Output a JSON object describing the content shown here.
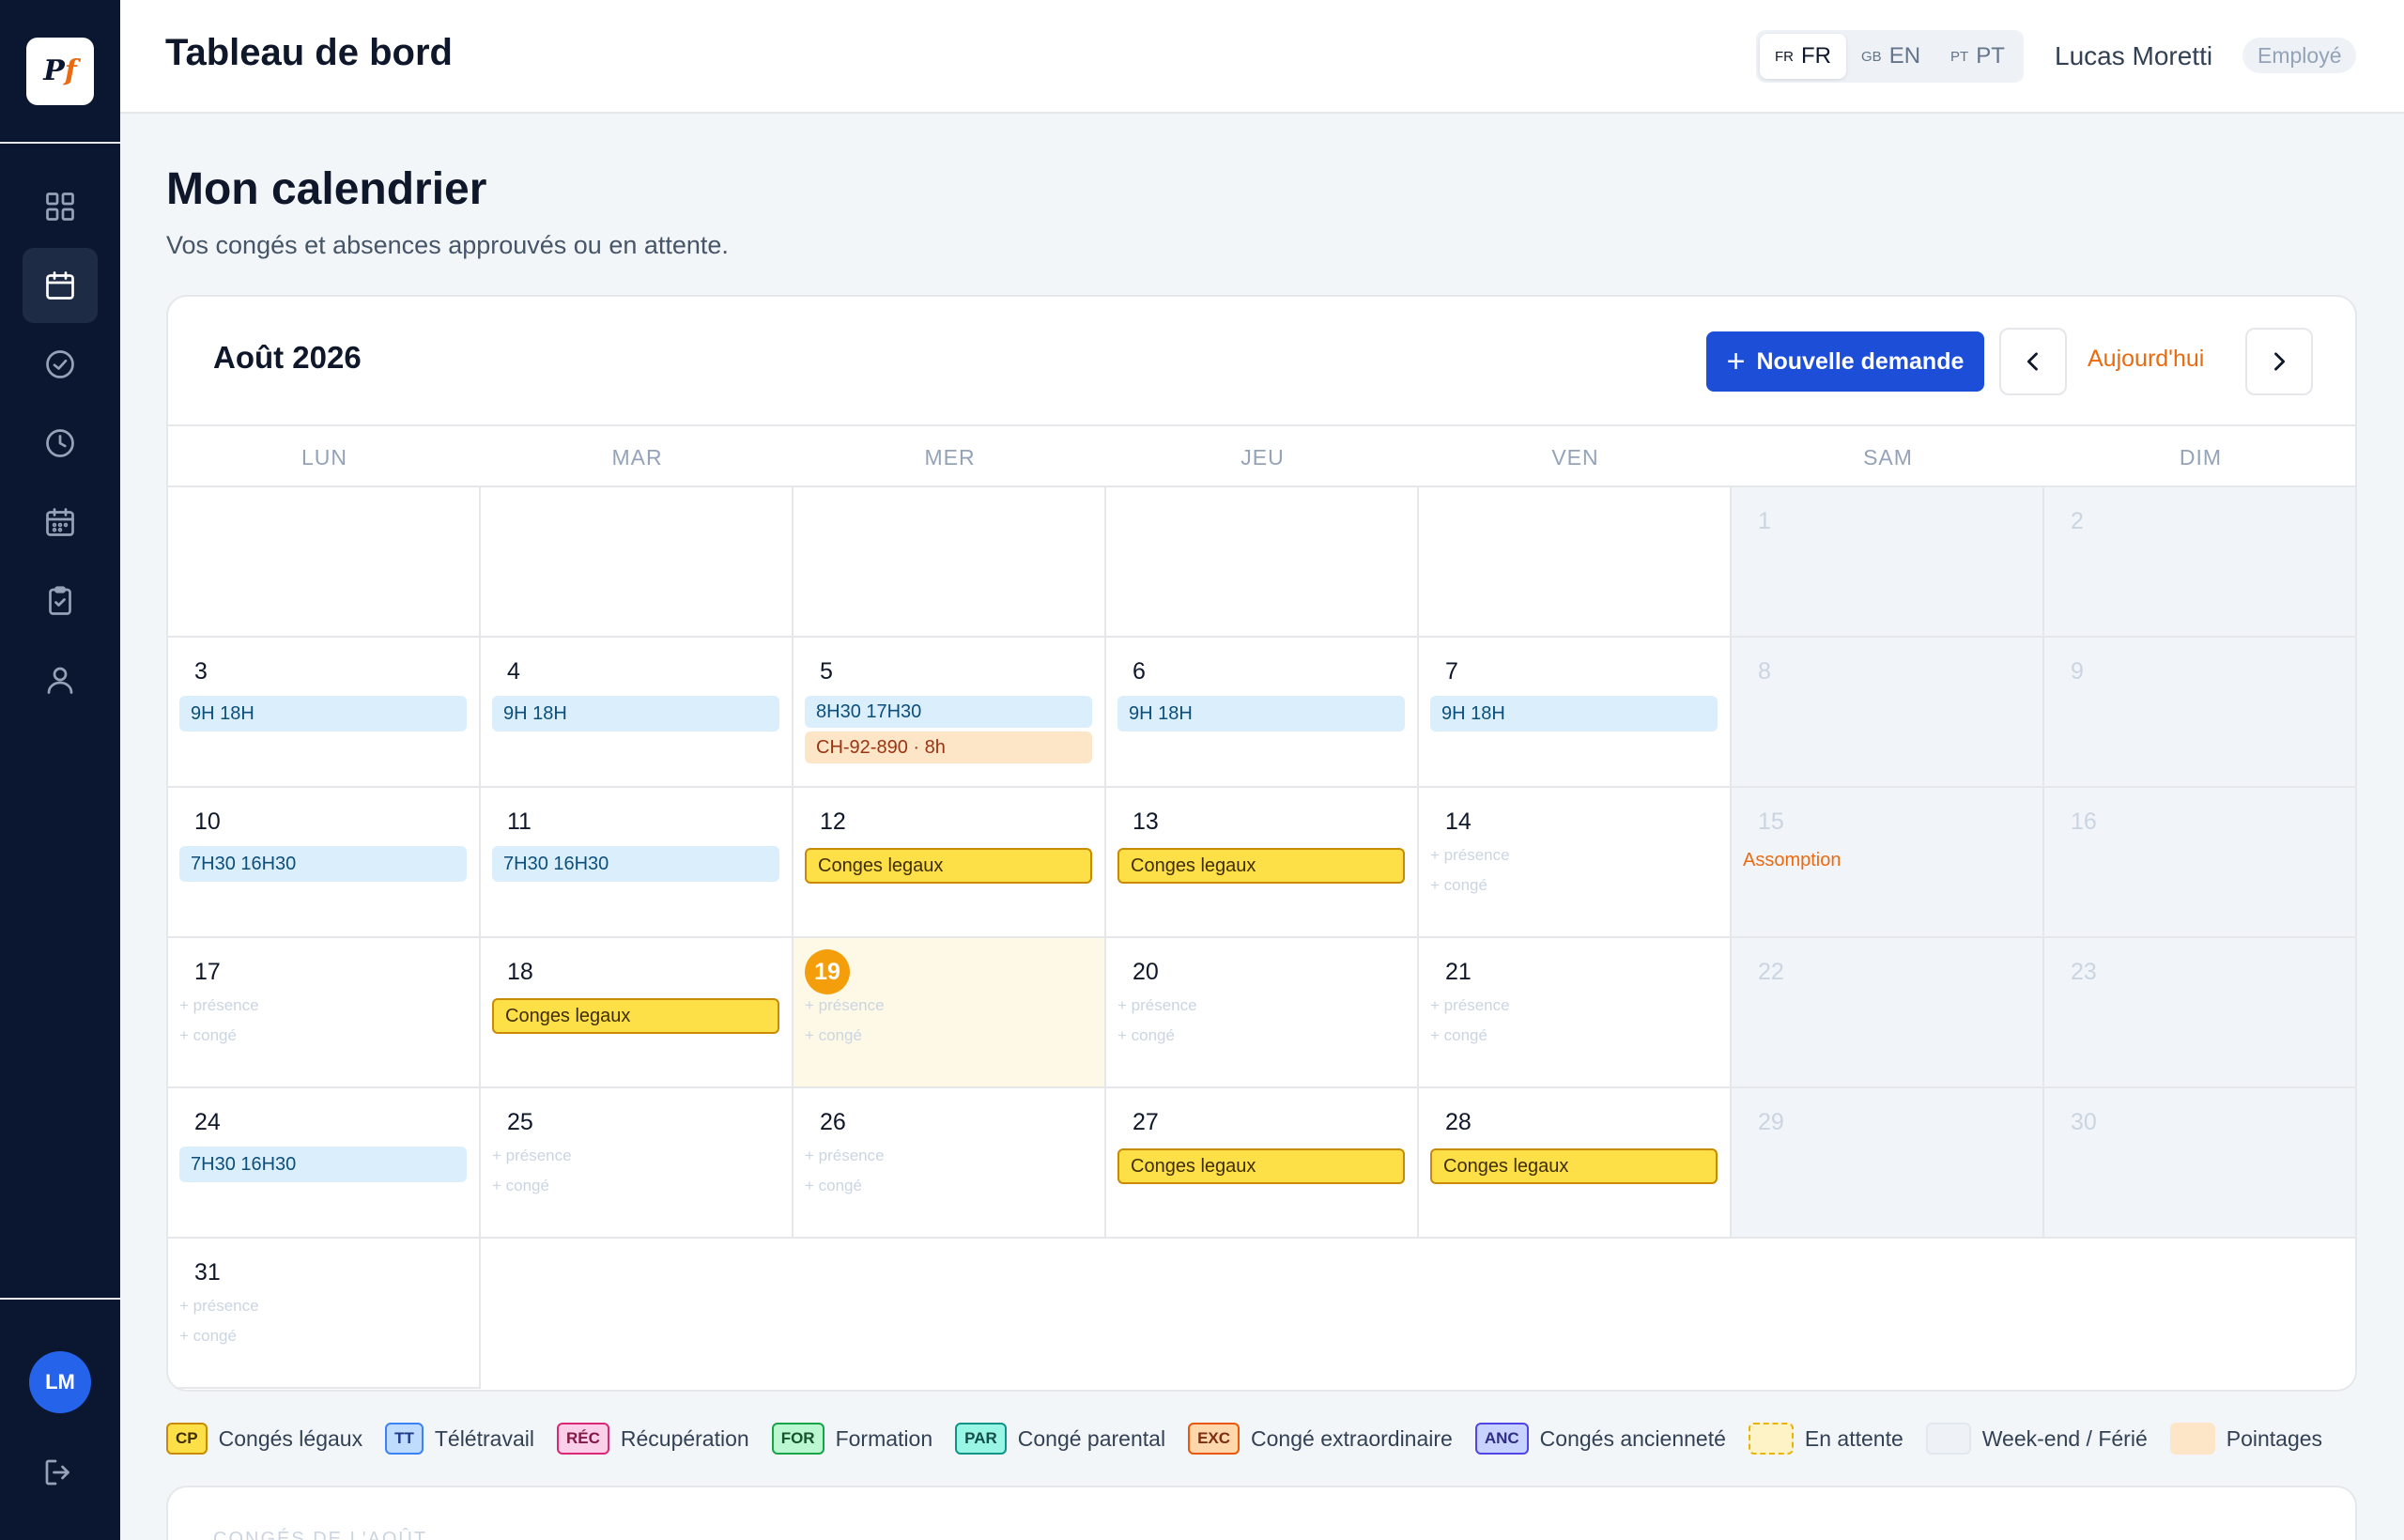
{
  "app": {
    "header_title": "Tableau de bord"
  },
  "lang": [
    {
      "code": "FR",
      "label": "FR",
      "active": true
    },
    {
      "code": "GB",
      "label": "EN",
      "active": false
    },
    {
      "code": "PT",
      "label": "PT",
      "active": false
    }
  ],
  "user": {
    "name": "Lucas Moretti",
    "role": "Employé",
    "initials": "LM"
  },
  "page": {
    "title": "Mon calendrier",
    "subtitle": "Vos congés et absences approuvés ou en attente."
  },
  "calendar": {
    "month_label": "Août 2026",
    "new_request_label": "Nouvelle demande",
    "today_label": "Aujourd'hui",
    "weekdays": [
      "LUN",
      "MAR",
      "MER",
      "JEU",
      "VEN",
      "SAM",
      "DIM"
    ],
    "add_presence": "+ présence",
    "add_leave": "+ congé",
    "today_day": 19,
    "days": [
      {
        "day": 1,
        "weekend": true
      },
      {
        "day": 2,
        "weekend": true
      },
      {
        "day": 3,
        "events": [
          {
            "type": "pointage",
            "label": "9H 18H"
          }
        ]
      },
      {
        "day": 4,
        "events": [
          {
            "type": "pointage",
            "label": "9H 18H"
          }
        ]
      },
      {
        "day": 5,
        "events": [
          {
            "type": "pointage",
            "label": "8H30 17H30"
          },
          {
            "type": "pending",
            "label": "CH-92-890 · 8h"
          }
        ]
      },
      {
        "day": 6,
        "events": [
          {
            "type": "pointage",
            "label": "9H 18H"
          }
        ]
      },
      {
        "day": 7,
        "events": [
          {
            "type": "pointage",
            "label": "9H 18H"
          }
        ]
      },
      {
        "day": 8,
        "weekend": true
      },
      {
        "day": 9,
        "weekend": true
      },
      {
        "day": 10,
        "events": [
          {
            "type": "pointage",
            "label": "7H30 16H30"
          }
        ]
      },
      {
        "day": 11,
        "events": [
          {
            "type": "pointage",
            "label": "7H30 16H30"
          }
        ]
      },
      {
        "day": 12,
        "events": [
          {
            "type": "cp",
            "label": "Conges legaux"
          }
        ]
      },
      {
        "day": 13,
        "events": [
          {
            "type": "cp",
            "label": "Conges legaux"
          }
        ]
      },
      {
        "day": 14,
        "add": true
      },
      {
        "day": 15,
        "weekend": true,
        "holiday": "Assomption"
      },
      {
        "day": 16,
        "weekend": true
      },
      {
        "day": 17,
        "add": true
      },
      {
        "day": 18,
        "events": [
          {
            "type": "cp",
            "label": "Conges legaux"
          }
        ]
      },
      {
        "day": 19,
        "add": true,
        "today": true
      },
      {
        "day": 20,
        "add": true
      },
      {
        "day": 21,
        "add": true
      },
      {
        "day": 22,
        "weekend": true
      },
      {
        "day": 23,
        "weekend": true
      },
      {
        "day": 24,
        "events": [
          {
            "type": "pointage",
            "label": "7H30 16H30"
          }
        ]
      },
      {
        "day": 25,
        "add": true
      },
      {
        "day": 26,
        "add": true
      },
      {
        "day": 27,
        "events": [
          {
            "type": "cp",
            "label": "Conges legaux"
          }
        ]
      },
      {
        "day": 28,
        "events": [
          {
            "type": "cp",
            "label": "Conges legaux"
          }
        ]
      },
      {
        "day": 29,
        "weekend": true
      },
      {
        "day": 30,
        "weekend": true
      },
      {
        "day": 31,
        "add": true
      }
    ]
  },
  "legend": [
    {
      "code": "CP",
      "label": "Congés légaux",
      "bg": "#fde047",
      "border": "#ca8a04",
      "color": "#3f2d02"
    },
    {
      "code": "TT",
      "label": "Télétravail",
      "bg": "#bfdbfe",
      "border": "#3b82f6",
      "color": "#1e3a8a"
    },
    {
      "code": "RÉC",
      "label": "Récupération",
      "bg": "#fbcfe8",
      "border": "#db2777",
      "color": "#831843"
    },
    {
      "code": "FOR",
      "label": "Formation",
      "bg": "#bbf7d0",
      "border": "#16a34a",
      "color": "#14532d"
    },
    {
      "code": "PAR",
      "label": "Congé parental",
      "bg": "#99f6e4",
      "border": "#0d9488",
      "color": "#134e4a"
    },
    {
      "code": "EXC",
      "label": "Congé extraordinaire",
      "bg": "#fed7aa",
      "border": "#ea580c",
      "color": "#7c2d12"
    },
    {
      "code": "ANC",
      "label": "Congés ancienneté",
      "bg": "#c7d2fe",
      "border": "#4f46e5",
      "color": "#312e81"
    },
    {
      "swatch": "pending",
      "label": "En attente"
    },
    {
      "swatch": "weekend",
      "label": "Week-end / Férié"
    },
    {
      "swatch": "pointage",
      "label": "Pointages"
    }
  ],
  "bottom_card": {
    "title": "CONGÉS DE L'AOÛT"
  }
}
